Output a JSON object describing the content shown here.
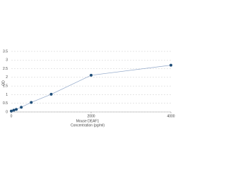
{
  "chart_data": {
    "type": "line",
    "x_label": "Mouse DEAF1",
    "x_label2": "Concentration (pg/ml)",
    "y_label": "OD",
    "x": [
      0,
      62.5,
      125,
      250,
      500,
      1000,
      2000,
      4000
    ],
    "series": [
      {
        "color": "#1f4e79",
        "line_color": "#8fa6c8",
        "values": [
          0.05,
          0.1,
          0.15,
          0.27,
          0.55,
          1.02,
          2.12,
          2.7
        ]
      }
    ],
    "xlim": [
      0,
      4000
    ],
    "xticks": [
      0,
      2000,
      4000
    ],
    "ylim": [
      0,
      3.5
    ],
    "yticks": [
      0,
      0.5,
      1,
      1.5,
      2,
      2.5,
      3,
      3.5
    ],
    "grid": true
  }
}
